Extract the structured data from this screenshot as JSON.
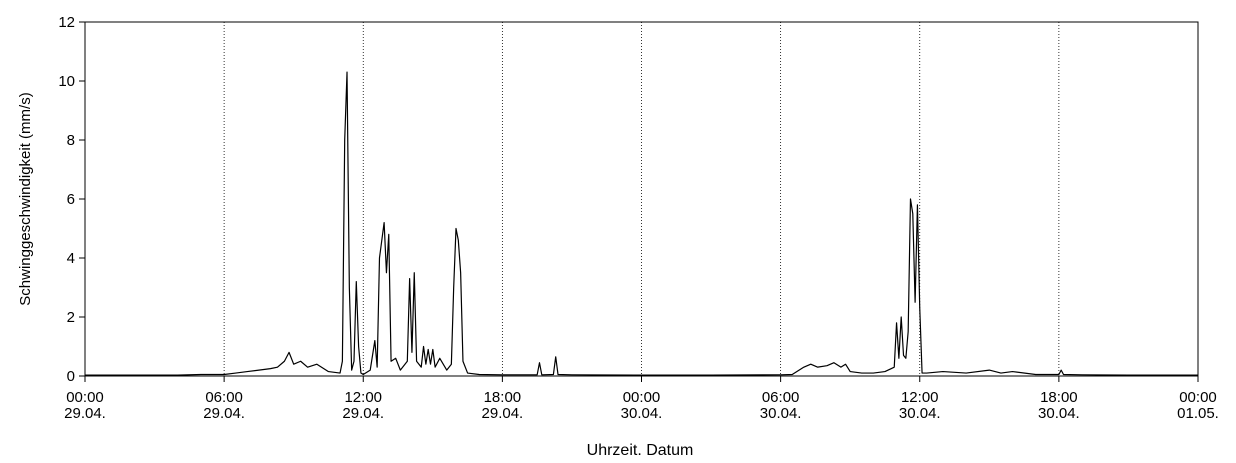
{
  "chart_data": {
    "type": "line",
    "xlabel": "Uhrzeit. Datum",
    "ylabel": "Schwinggeschwindigkeit (mm/s)",
    "xlim": [
      0,
      48
    ],
    "ylim": [
      0,
      12
    ],
    "yticks": [
      0,
      2,
      4,
      6,
      8,
      10,
      12
    ],
    "xticks": [
      {
        "value": 0,
        "label": [
          "00:00",
          "29.04."
        ]
      },
      {
        "value": 6,
        "label": [
          "06:00",
          "29.04."
        ]
      },
      {
        "value": 12,
        "label": [
          "12:00",
          "29.04."
        ]
      },
      {
        "value": 18,
        "label": [
          "18:00",
          "29.04."
        ]
      },
      {
        "value": 24,
        "label": [
          "00:00",
          "30.04."
        ]
      },
      {
        "value": 30,
        "label": [
          "06:00",
          "30.04."
        ]
      },
      {
        "value": 36,
        "label": [
          "12:00",
          "30.04."
        ]
      },
      {
        "value": 42,
        "label": [
          "18:00",
          "30.04."
        ]
      },
      {
        "value": 48,
        "label": [
          "00:00",
          "01.05."
        ]
      }
    ],
    "grid": "x-dotted",
    "color": "#000000",
    "x": [
      0,
      1,
      2,
      3,
      4,
      5,
      6,
      6.5,
      7,
      7.5,
      8,
      8.3,
      8.6,
      8.8,
      9,
      9.3,
      9.6,
      10,
      10.5,
      11,
      11.1,
      11.2,
      11.3,
      11.4,
      11.5,
      11.6,
      11.7,
      11.8,
      11.9,
      12,
      12.3,
      12.5,
      12.6,
      12.7,
      12.9,
      13.0,
      13.1,
      13.2,
      13.4,
      13.6,
      13.9,
      14.0,
      14.1,
      14.2,
      14.3,
      14.5,
      14.6,
      14.7,
      14.8,
      14.9,
      15.0,
      15.1,
      15.3,
      15.6,
      15.8,
      15.9,
      16.0,
      16.1,
      16.2,
      16.3,
      16.5,
      17,
      18,
      19,
      19.5,
      19.6,
      19.7,
      20.2,
      20.3,
      20.4,
      21,
      24,
      27,
      30,
      30.5,
      31,
      31.3,
      31.6,
      32,
      32.3,
      32.6,
      32.8,
      33,
      33.5,
      34,
      34.5,
      34.9,
      35.0,
      35.1,
      35.2,
      35.3,
      35.4,
      35.5,
      35.6,
      35.7,
      35.8,
      35.9,
      36.0,
      36.1,
      36.3,
      37,
      38,
      39,
      39.5,
      40,
      41,
      42,
      42.1,
      42.2,
      43,
      45,
      48
    ],
    "values": [
      0.03,
      0.03,
      0.03,
      0.03,
      0.03,
      0.05,
      0.05,
      0.1,
      0.15,
      0.2,
      0.25,
      0.3,
      0.5,
      0.8,
      0.4,
      0.5,
      0.3,
      0.4,
      0.15,
      0.1,
      0.5,
      8.0,
      10.3,
      3.0,
      0.2,
      0.5,
      3.2,
      1.0,
      0.1,
      0.05,
      0.2,
      1.2,
      0.3,
      4.0,
      5.2,
      3.5,
      4.8,
      0.5,
      0.6,
      0.2,
      0.5,
      3.3,
      0.8,
      3.5,
      0.5,
      0.3,
      1.0,
      0.4,
      0.9,
      0.4,
      0.9,
      0.3,
      0.6,
      0.2,
      0.4,
      3.0,
      5.0,
      4.6,
      3.5,
      0.5,
      0.1,
      0.05,
      0.04,
      0.04,
      0.04,
      0.45,
      0.04,
      0.05,
      0.65,
      0.05,
      0.04,
      0.03,
      0.03,
      0.04,
      0.05,
      0.3,
      0.4,
      0.3,
      0.35,
      0.45,
      0.3,
      0.4,
      0.15,
      0.1,
      0.1,
      0.15,
      0.3,
      1.8,
      0.6,
      2.0,
      0.7,
      0.6,
      1.5,
      6.0,
      5.5,
      2.5,
      5.8,
      2.3,
      0.1,
      0.1,
      0.15,
      0.1,
      0.2,
      0.1,
      0.15,
      0.05,
      0.05,
      0.2,
      0.05,
      0.04,
      0.03,
      0.03
    ]
  }
}
